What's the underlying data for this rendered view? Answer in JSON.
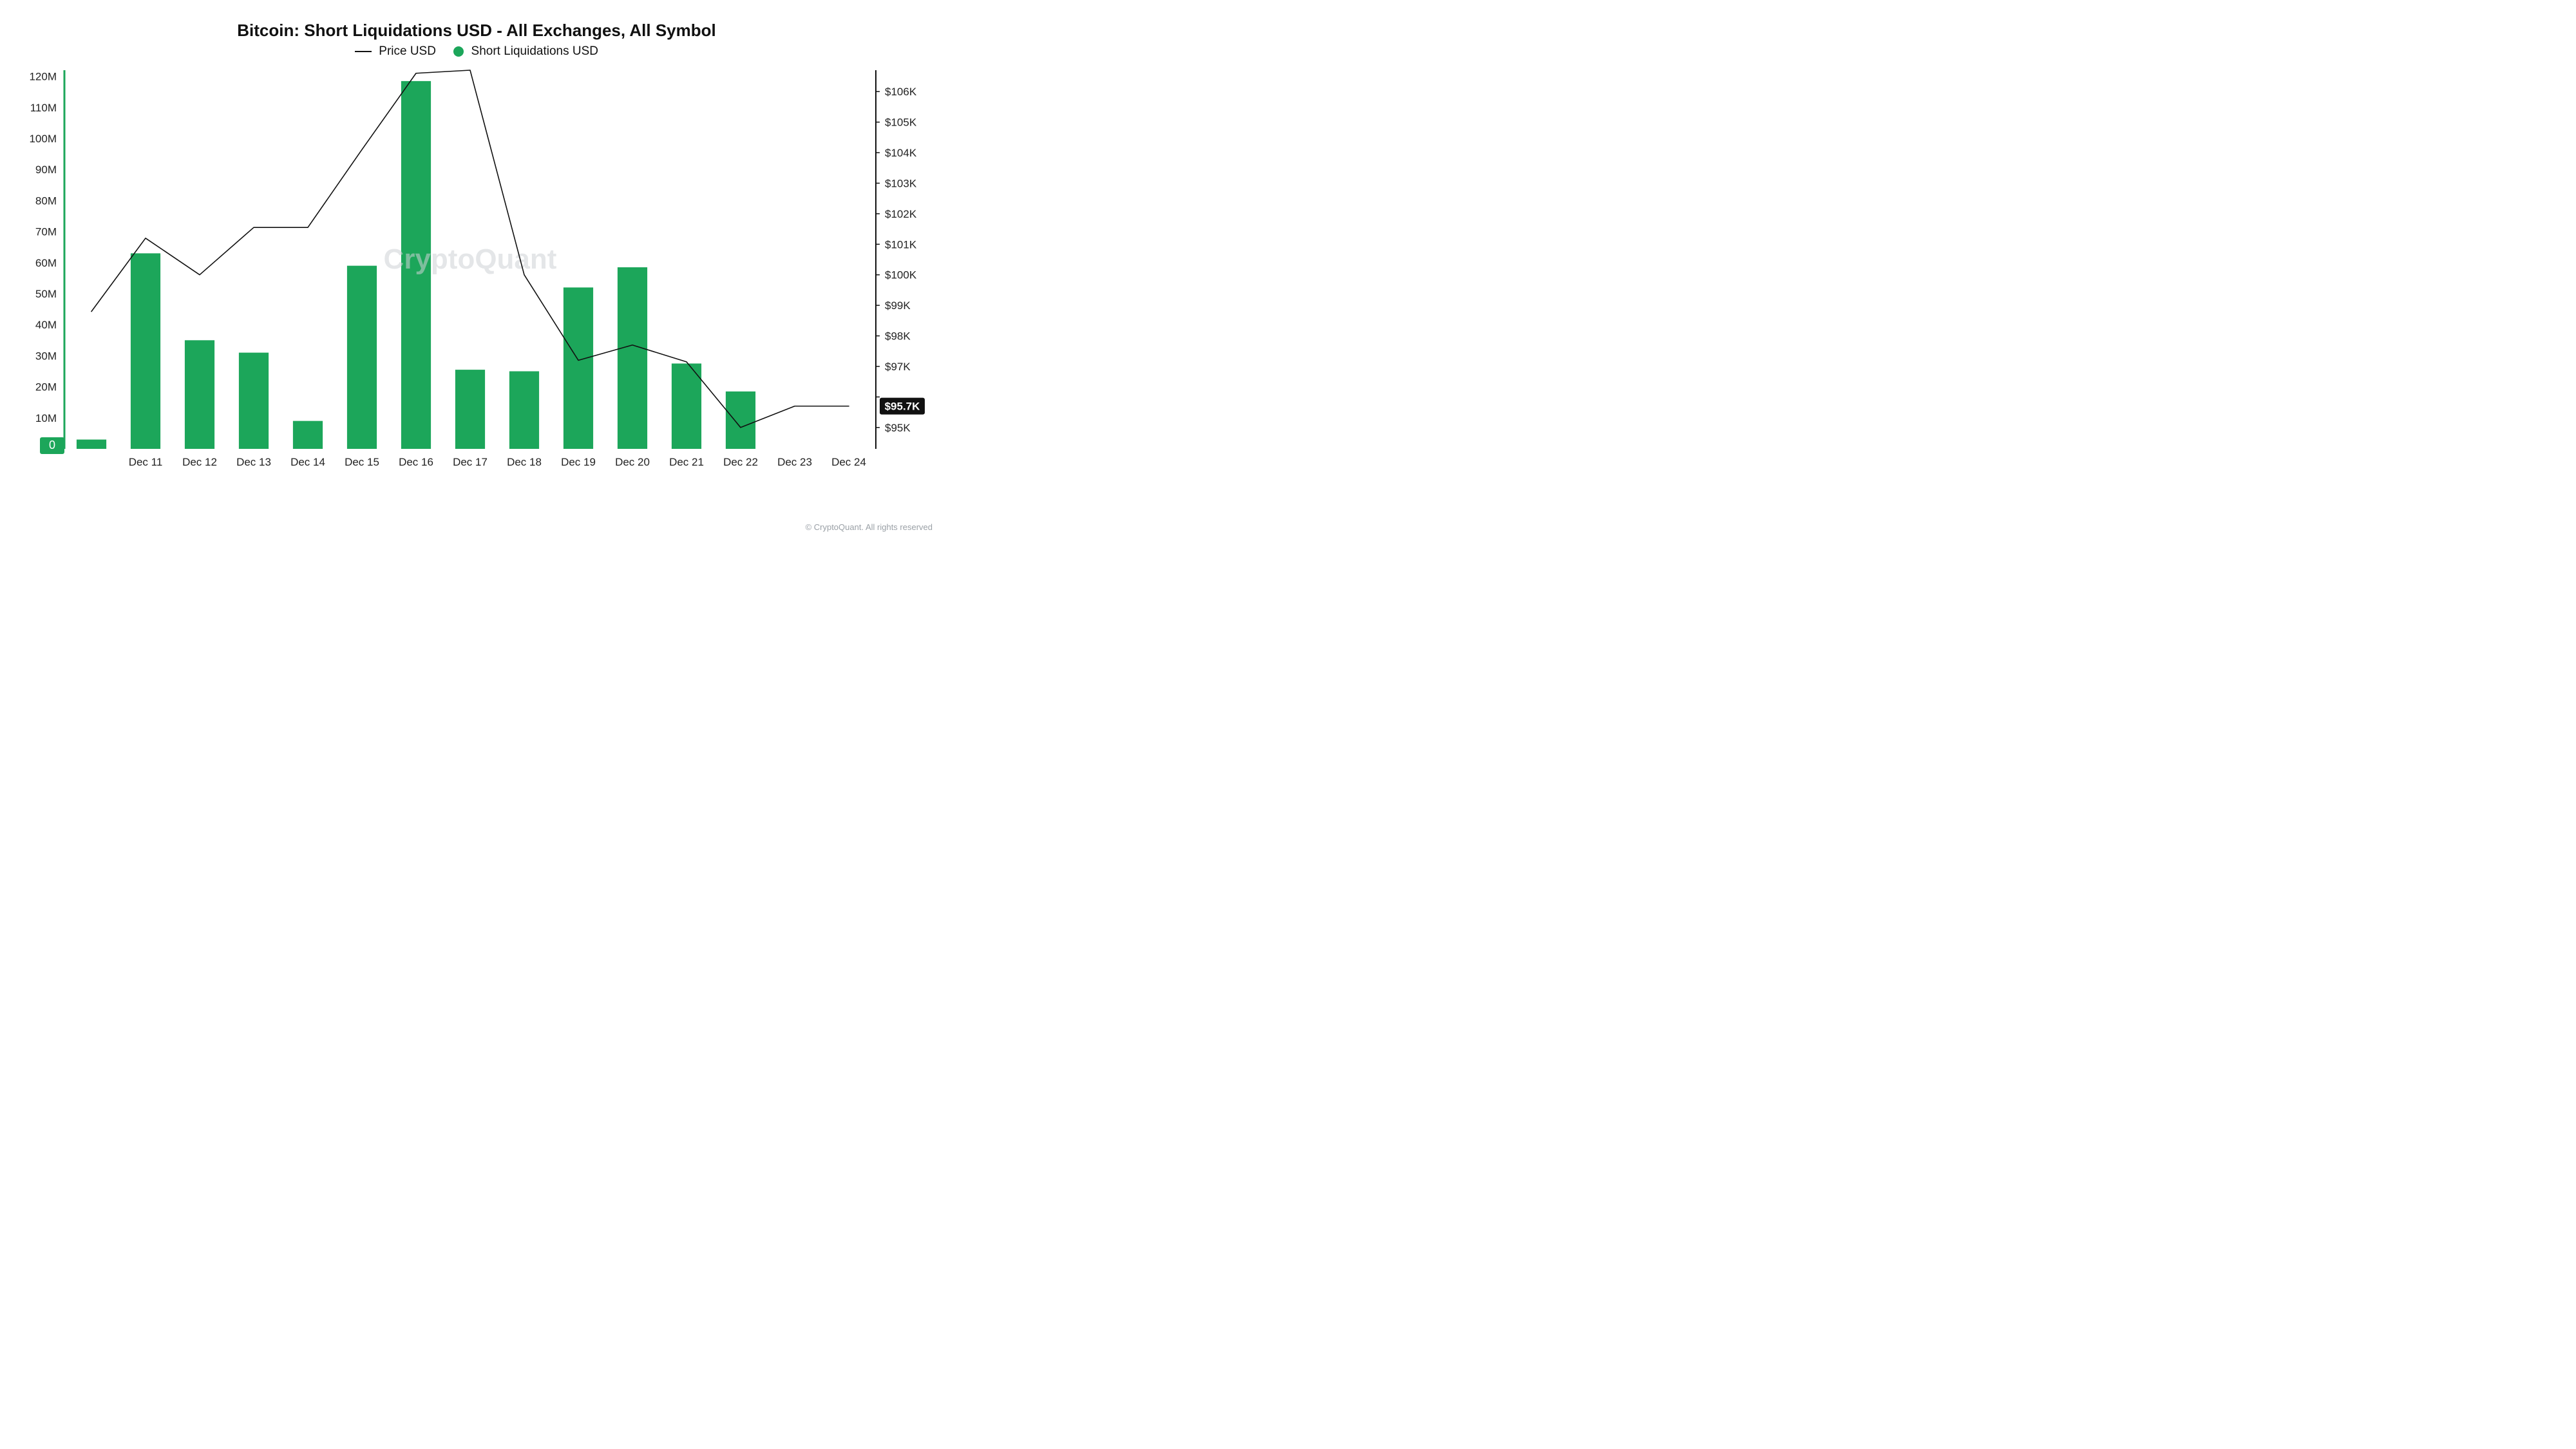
{
  "chart": {
    "type": "bar+line",
    "title": "Bitcoin: Short Liquidations USD - All Exchanges, All Symbol",
    "legend": {
      "line_label": "Price USD",
      "bar_label": "Short Liquidations USD"
    },
    "watermark": "CryptoQuant",
    "copyright": "© CryptoQuant. All rights reserved",
    "background_color": "#ffffff",
    "bar_color": "#1ca65a",
    "line_color": "#111111",
    "left_axis_accent": "#1ca65a",
    "right_axis_color": "#111111",
    "price_badge_bg": "#111111",
    "price_badge_text": "$95.7K",
    "categories": [
      "Dec 11",
      "Dec 12",
      "Dec 13",
      "Dec 14",
      "Dec 15",
      "Dec 16",
      "Dec 17",
      "Dec 18",
      "Dec 19",
      "Dec 20",
      "Dec 21",
      "Dec 22",
      "Dec 23",
      "Dec 24"
    ],
    "n_bar_slots_before": 1,
    "bar_values_M": [
      3,
      63,
      35,
      31,
      9,
      59,
      118.5,
      25.5,
      25,
      52,
      58.5,
      27.5,
      18.5,
      null,
      null
    ],
    "left_axis": {
      "min": 0,
      "max": 122,
      "ticks": [
        0,
        10,
        20,
        30,
        40,
        50,
        60,
        70,
        80,
        90,
        100,
        110,
        120
      ],
      "tick_labels": [
        "0",
        "10M",
        "20M",
        "30M",
        "40M",
        "50M",
        "60M",
        "70M",
        "80M",
        "90M",
        "100M",
        "110M",
        "120M"
      ],
      "label_fontsize": 17
    },
    "right_axis": {
      "min": 94.3,
      "max": 106.7,
      "ticks": [
        95,
        96,
        97,
        98,
        99,
        100,
        101,
        102,
        103,
        104,
        105,
        106
      ],
      "tick_labels": [
        "$95K",
        "$96K",
        "$97K",
        "$98K",
        "$99K",
        "$100K",
        "$101K",
        "$102K",
        "$103K",
        "$104K",
        "$105K",
        "$106K"
      ],
      "label_fontsize": 17
    },
    "price_line_points_K": [
      98.8,
      101.2,
      100.0,
      101.55,
      101.55,
      104.1,
      106.6,
      106.7,
      100.0,
      97.2,
      97.7,
      97.15,
      95.0,
      95.7,
      95.7
    ],
    "bar_width_ratio": 0.55,
    "title_fontsize": 26,
    "legend_fontsize": 19,
    "watermark_fontsize": 44
  }
}
